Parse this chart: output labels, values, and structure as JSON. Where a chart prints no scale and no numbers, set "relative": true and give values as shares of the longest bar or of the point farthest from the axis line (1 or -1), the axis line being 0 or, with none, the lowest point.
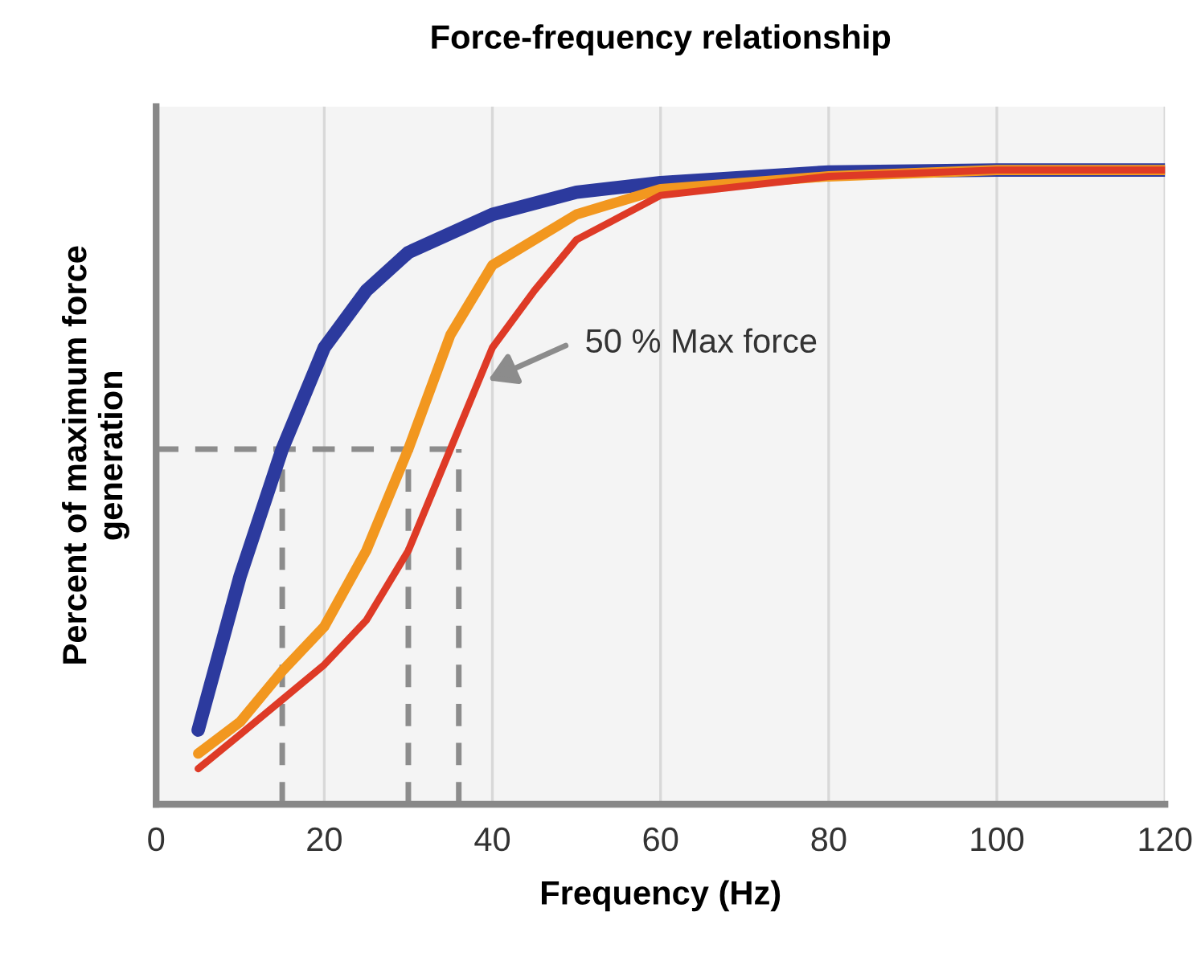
{
  "chart_data": {
    "type": "line",
    "title": "Force-frequency relationship",
    "xlabel": "Frequency (Hz)",
    "ylabel": "Percent of maximum force\ngeneration",
    "relative": true,
    "xlim": [
      0,
      120
    ],
    "xticks": [
      0,
      20,
      40,
      60,
      80,
      100,
      120
    ],
    "grid": "x",
    "line_style": "solid",
    "marker": "none",
    "series": [
      {
        "color": "#2c3a9e",
        "x": [
          5,
          10,
          15,
          20,
          25,
          30,
          40,
          50,
          60,
          80,
          100,
          120
        ],
        "values": [
          0.117,
          0.36,
          0.56,
          0.72,
          0.81,
          0.87,
          0.93,
          0.965,
          0.98,
          0.997,
          1,
          1
        ]
      },
      {
        "color": "#f2971f",
        "x": [
          5,
          10,
          15,
          20,
          25,
          30,
          35,
          40,
          50,
          60,
          80,
          100,
          120
        ],
        "values": [
          0.08,
          0.13,
          0.21,
          0.28,
          0.4,
          0.56,
          0.74,
          0.85,
          0.93,
          0.97,
          0.99,
          1,
          1
        ]
      },
      {
        "color": "#de3a26",
        "x": [
          5,
          10,
          15,
          20,
          25,
          30,
          35,
          40,
          45,
          50,
          60,
          80,
          100,
          120
        ],
        "values": [
          0.056,
          0.11,
          0.165,
          0.22,
          0.29,
          0.4,
          0.56,
          0.72,
          0.81,
          0.89,
          0.96,
          0.99,
          1,
          1
        ]
      }
    ],
    "ref_lines": [
      {
        "axis": "y",
        "value": 0.56,
        "color": "#8c8c8c",
        "line_style": "dashed"
      },
      {
        "axis": "x",
        "value": 15,
        "color": "#8c8c8c",
        "line_style": "dashed"
      },
      {
        "axis": "x",
        "value": 30,
        "color": "#8c8c8c",
        "line_style": "dashed"
      },
      {
        "axis": "x",
        "value": 36,
        "color": "#8c8c8c",
        "line_style": "dashed"
      }
    ],
    "annotations": [
      "50 % Max force"
    ]
  }
}
